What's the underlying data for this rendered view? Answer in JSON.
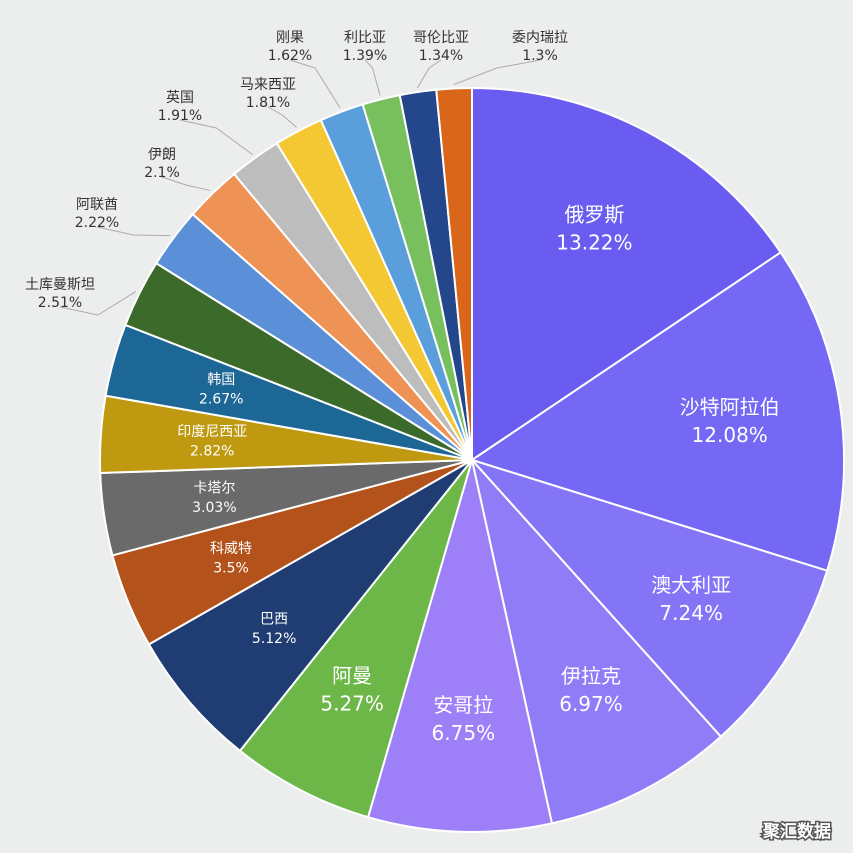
{
  "chart_data": {
    "type": "pie",
    "categories": [
      "俄罗斯",
      "沙特阿拉伯",
      "澳大利亚",
      "伊拉克",
      "安哥拉",
      "阿曼",
      "巴西",
      "科威特",
      "卡塔尔",
      "印度尼西亚",
      "韩国",
      "土库曼斯坦",
      "阿联酋",
      "伊朗",
      "英国",
      "马来西亚",
      "刚果",
      "利比亚",
      "哥伦比亚",
      "委内瑞拉"
    ],
    "values": [
      13.22,
      12.08,
      7.24,
      6.97,
      6.75,
      5.27,
      5.12,
      3.5,
      3.03,
      2.82,
      2.67,
      2.51,
      2.22,
      2.1,
      1.91,
      1.81,
      1.62,
      1.39,
      1.34,
      1.3
    ],
    "value_labels": [
      "13.22%",
      "12.08%",
      "7.24%",
      "6.97%",
      "6.75%",
      "5.27%",
      "5.12%",
      "3.5%",
      "3.03%",
      "2.82%",
      "2.67%",
      "2.51%",
      "2.22%",
      "2.1%",
      "1.91%",
      "1.81%",
      "1.62%",
      "1.39%",
      "1.34%",
      "1.3%"
    ],
    "colors": [
      "#6a5cf0",
      "#7568f4",
      "#8474f6",
      "#917cf8",
      "#9d80f8",
      "#6db749",
      "#1f3d72",
      "#b4521c",
      "#6a6a6a",
      "#bf9910",
      "#1d6796",
      "#3c6a2a",
      "#5b8fd8",
      "#ee9355",
      "#bdbdbd",
      "#f4c832",
      "#5a9fdc",
      "#78bf5e",
      "#24468a",
      "#d9661a"
    ],
    "watermark": "聚汇数据"
  }
}
